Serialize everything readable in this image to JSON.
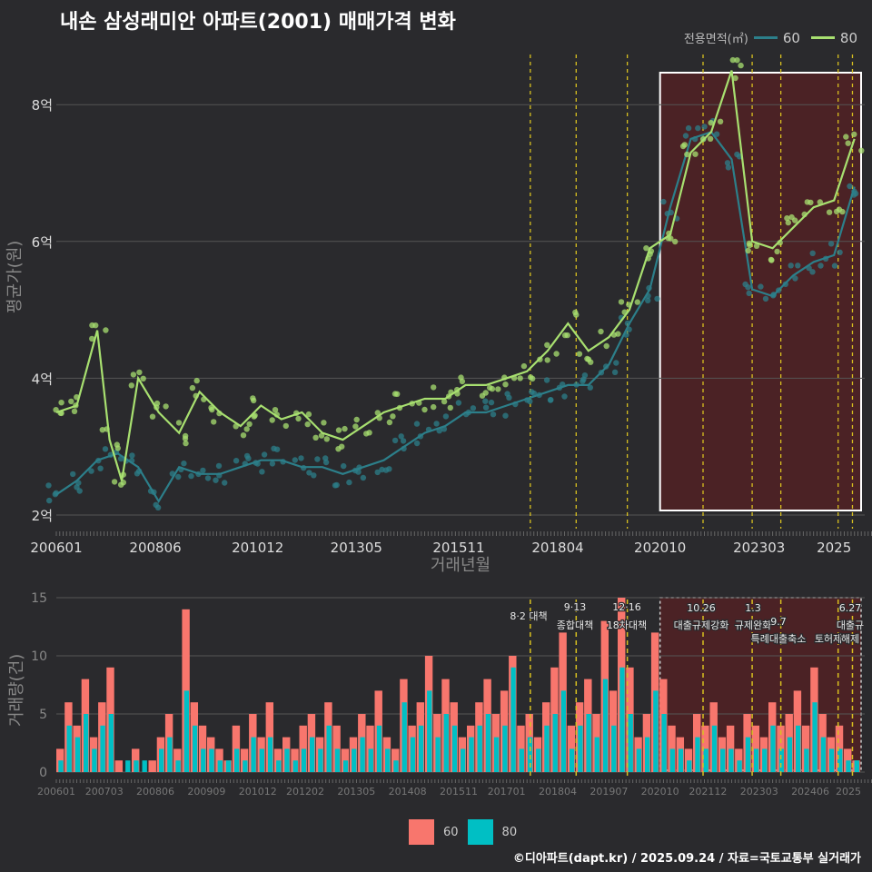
{
  "title": "내손 삼성래미안 아파트(2001) 매매가격 변화",
  "legend_top": {
    "label": "전용면적(㎡)",
    "items": [
      {
        "name": "60",
        "color": "#2c7f8a"
      },
      {
        "name": "80",
        "color": "#a8e070"
      }
    ]
  },
  "legend_bottom": {
    "items": [
      {
        "name": "60",
        "color": "#f8766d"
      },
      {
        "name": "80",
        "color": "#00bfc4"
      }
    ]
  },
  "footer": "©디아파트(dapt.kr) / 2025.09.24 / 자료=국토교통부 실거래가",
  "chart_data": [
    {
      "type": "line",
      "title": "매매가격 변화",
      "xlabel": "거래년월",
      "ylabel": "평균가(원)",
      "ylim": [
        1.8,
        8.8
      ],
      "yticks": [
        "2억",
        "4억",
        "6억",
        "8억"
      ],
      "xticks": [
        "200601",
        "200806",
        "201012",
        "201305",
        "201511",
        "201804",
        "202010",
        "202303",
        "2025"
      ],
      "series": [
        {
          "name": "60",
          "color": "#2c7f8a",
          "x": [
            2006.0,
            2006.5,
            2007.0,
            2007.5,
            2008.0,
            2008.5,
            2009.0,
            2009.5,
            2010.0,
            2010.5,
            2011.0,
            2011.5,
            2012.0,
            2012.5,
            2013.0,
            2013.5,
            2014.0,
            2014.5,
            2015.0,
            2015.5,
            2016.0,
            2016.5,
            2017.0,
            2017.5,
            2018.0,
            2018.5,
            2019.0,
            2019.5,
            2020.0,
            2020.5,
            2021.0,
            2021.5,
            2022.0,
            2022.5,
            2023.0,
            2023.5,
            2024.0,
            2024.5,
            2025.0,
            2025.5
          ],
          "y": [
            2.3,
            2.5,
            2.8,
            2.9,
            2.7,
            2.2,
            2.7,
            2.6,
            2.6,
            2.7,
            2.8,
            2.8,
            2.7,
            2.7,
            2.6,
            2.7,
            2.8,
            3.0,
            3.2,
            3.3,
            3.5,
            3.5,
            3.6,
            3.7,
            3.8,
            3.9,
            3.9,
            4.2,
            4.8,
            5.3,
            6.5,
            7.5,
            7.6,
            7.2,
            5.3,
            5.2,
            5.5,
            5.7,
            5.8,
            6.8
          ]
        },
        {
          "name": "80",
          "color": "#a8e070",
          "x": [
            2006.0,
            2006.5,
            2007.0,
            2007.3,
            2007.6,
            2008.0,
            2008.5,
            2009.0,
            2009.5,
            2010.0,
            2010.5,
            2011.0,
            2011.5,
            2012.0,
            2012.5,
            2013.0,
            2013.5,
            2014.0,
            2014.5,
            2015.0,
            2015.5,
            2016.0,
            2016.5,
            2017.0,
            2017.5,
            2018.0,
            2018.5,
            2019.0,
            2019.5,
            2020.0,
            2020.5,
            2021.0,
            2021.5,
            2022.0,
            2022.5,
            2023.0,
            2023.5,
            2024.0,
            2024.5,
            2025.0,
            2025.5
          ],
          "y": [
            3.5,
            3.6,
            4.7,
            3.1,
            2.5,
            4.0,
            3.5,
            3.2,
            3.8,
            3.5,
            3.3,
            3.6,
            3.4,
            3.5,
            3.2,
            3.1,
            3.3,
            3.5,
            3.6,
            3.7,
            3.7,
            3.9,
            3.9,
            4.0,
            4.1,
            4.4,
            4.8,
            4.4,
            4.6,
            5.0,
            5.9,
            6.1,
            7.3,
            7.6,
            8.5,
            6.0,
            5.9,
            6.2,
            6.5,
            6.6,
            7.5
          ]
        }
      ],
      "policy_dates": [
        "201708",
        "201809",
        "201912",
        "202110",
        "202301",
        "202309",
        "202408",
        "202506"
      ],
      "highlight_range": [
        "202010",
        "2025"
      ]
    },
    {
      "type": "bar",
      "title": "거래량",
      "ylabel": "거래량(건)",
      "ylim": [
        0,
        15
      ],
      "yticks": [
        "0",
        "5",
        "10",
        "15"
      ],
      "xticks": [
        "200601",
        "200703",
        "200806",
        "200909",
        "201012",
        "201202",
        "201305",
        "201408",
        "201511",
        "201701",
        "201804",
        "201907",
        "202010",
        "202112",
        "202303",
        "202406",
        "2025"
      ],
      "series": [
        {
          "name": "60",
          "color": "#f8766d",
          "values": [
            2,
            6,
            4,
            8,
            3,
            6,
            9,
            1,
            0,
            2,
            0,
            1,
            3,
            5,
            2,
            14,
            6,
            4,
            3,
            2,
            1,
            4,
            2,
            5,
            3,
            6,
            2,
            3,
            2,
            4,
            5,
            3,
            6,
            4,
            2,
            3,
            5,
            4,
            7,
            3,
            2,
            8,
            4,
            6,
            10,
            5,
            8,
            6,
            3,
            4,
            6,
            8,
            5,
            7,
            10,
            4,
            5,
            3,
            6,
            9,
            12,
            4,
            6,
            8,
            5,
            13,
            7,
            15,
            9,
            3,
            5,
            12,
            8,
            4,
            3,
            2,
            5,
            4,
            6,
            3,
            4,
            2,
            5,
            4,
            3,
            6,
            4,
            5,
            7,
            4,
            9,
            5,
            3,
            4,
            2,
            1
          ]
        },
        {
          "name": "80",
          "color": "#00bfc4",
          "values": [
            1,
            4,
            3,
            5,
            2,
            4,
            5,
            0,
            1,
            1,
            1,
            0,
            2,
            3,
            1,
            7,
            4,
            2,
            2,
            1,
            1,
            2,
            1,
            3,
            2,
            3,
            1,
            2,
            1,
            2,
            3,
            2,
            4,
            2,
            1,
            2,
            3,
            2,
            4,
            2,
            1,
            6,
            3,
            4,
            7,
            3,
            5,
            4,
            2,
            3,
            4,
            5,
            3,
            4,
            9,
            2,
            3,
            2,
            4,
            5,
            7,
            2,
            4,
            5,
            3,
            8,
            4,
            9,
            5,
            2,
            3,
            7,
            5,
            2,
            2,
            1,
            3,
            2,
            4,
            2,
            2,
            1,
            3,
            2,
            2,
            4,
            2,
            3,
            4,
            2,
            6,
            3,
            2,
            2,
            1,
            1
          ]
        }
      ],
      "annotations": [
        {
          "date": "8·2 대책",
          "text": ""
        },
        {
          "date": "9·13",
          "text": "종합대책"
        },
        {
          "date": "12·16",
          "text": "18차대책"
        },
        {
          "date": "10.26",
          "text": "대출규제강화"
        },
        {
          "date": "1.3",
          "text": "규제완화"
        },
        {
          "date": "9.7",
          "text": "특례대출축소"
        },
        {
          "date": "",
          "text": "토허제"
        },
        {
          "date": "6.27",
          "text": "대출규"
        },
        {
          "date": "",
          "text": "해제"
        }
      ]
    }
  ]
}
